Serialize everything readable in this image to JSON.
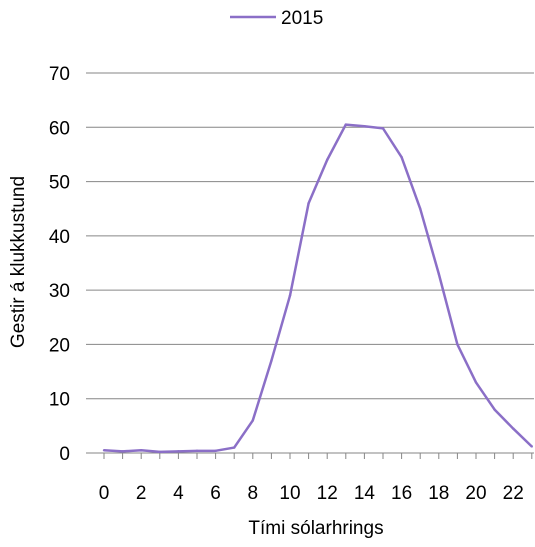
{
  "chart_data": {
    "type": "line",
    "x": [
      0,
      1,
      2,
      3,
      4,
      5,
      6,
      7,
      8,
      9,
      10,
      11,
      12,
      13,
      14,
      15,
      16,
      17,
      18,
      19,
      20,
      21,
      22,
      23
    ],
    "series": [
      {
        "name": "2015",
        "color": "#8b6fc7",
        "values": [
          0.5,
          0.3,
          0.5,
          0.2,
          0.3,
          0.4,
          0.4,
          1.0,
          6,
          17,
          29,
          46,
          54,
          60.5,
          60.2,
          59.8,
          54.5,
          45,
          33,
          20,
          13,
          8,
          4.5,
          1.2
        ]
      }
    ],
    "xlabel": "Tími sólarhrings",
    "ylabel": "Gestir á klukkustund",
    "xticks": [
      "0",
      "2",
      "4",
      "6",
      "8",
      "10",
      "12",
      "14",
      "16",
      "18",
      "20",
      "22"
    ],
    "yticks": [
      "0",
      "10",
      "20",
      "30",
      "40",
      "50",
      "60",
      "70"
    ],
    "ylim": [
      0,
      70
    ],
    "xlim": [
      0,
      23
    ],
    "grid": "horizontal",
    "legend_position": "top-center"
  }
}
